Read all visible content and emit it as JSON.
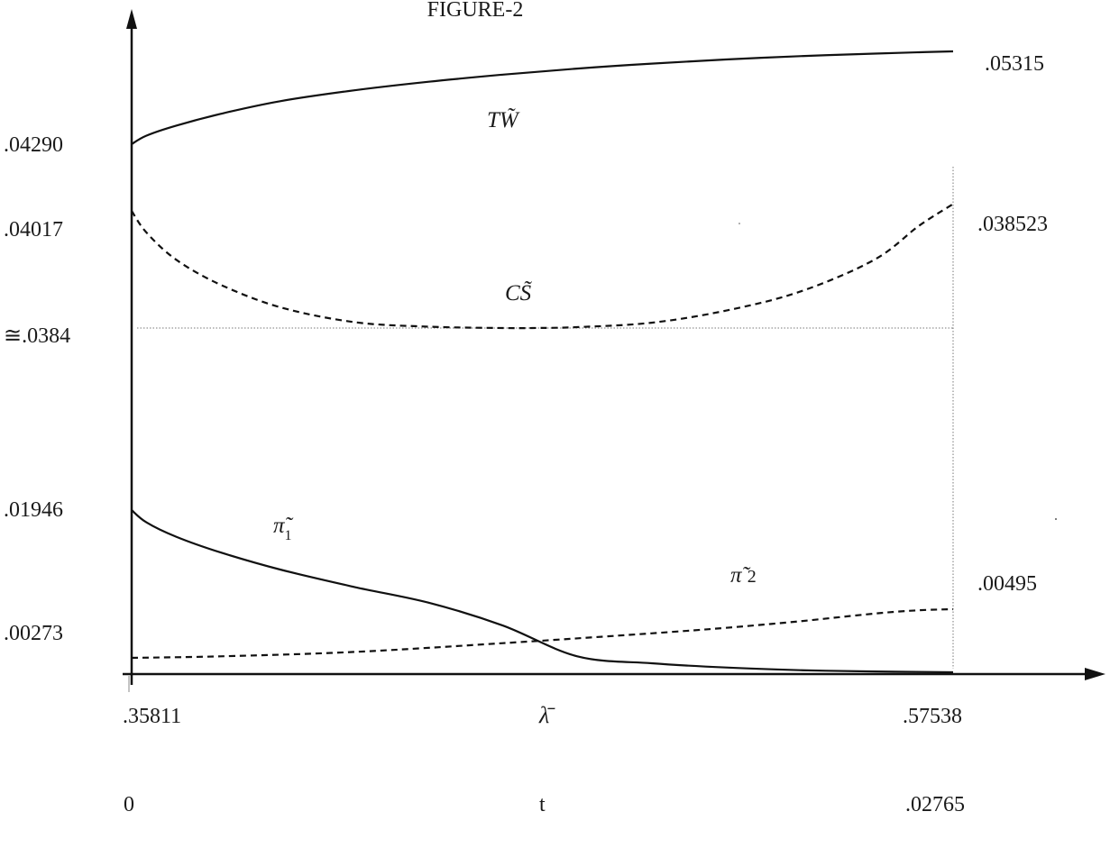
{
  "chart_data": {
    "type": "line",
    "title": "FIGURE-2",
    "x": {
      "label_lambda": "λ̄",
      "label_t": "t",
      "lambda_ticks": [
        ".35811",
        ".57538"
      ],
      "t_ticks": [
        "0",
        ".02765"
      ],
      "t_range": [
        0,
        0.02765
      ],
      "lambda_range": [
        0.35811,
        0.57538
      ]
    },
    "y_left_labels": [
      ".04290",
      ".04017",
      "≅.0384",
      ".01946",
      ".00273"
    ],
    "y_right_labels": [
      ".05315",
      ".038523",
      ".00495"
    ],
    "series": [
      {
        "name": "TW̃",
        "style": "solid",
        "x": [
          0,
          0.0005,
          0.0015,
          0.003,
          0.005,
          0.0075,
          0.01,
          0.0125,
          0.015,
          0.0175,
          0.02,
          0.0225,
          0.025,
          0.0265,
          0.02765
        ],
        "y": [
          0.0429,
          0.04385,
          0.04495,
          0.04625,
          0.04765,
          0.04885,
          0.0498,
          0.05058,
          0.05125,
          0.0518,
          0.05225,
          0.05262,
          0.0529,
          0.05305,
          0.05315
        ]
      },
      {
        "name": "CS̃",
        "style": "dashed",
        "x": [
          0,
          0.0005,
          0.0015,
          0.003,
          0.005,
          0.0075,
          0.01,
          0.0125,
          0.0135,
          0.015,
          0.0175,
          0.02,
          0.0225,
          0.025,
          0.0265,
          0.02765
        ],
        "y": [
          0.04017,
          0.03985,
          0.03945,
          0.03908,
          0.03875,
          0.03853,
          0.03843,
          0.0384,
          0.0384,
          0.03842,
          0.03852,
          0.0387,
          0.03898,
          0.03945,
          0.03995,
          0.04045
        ]
      },
      {
        "name": "π̃1",
        "style": "solid",
        "x": [
          0,
          0.0005,
          0.0015,
          0.003,
          0.005,
          0.0075,
          0.01,
          0.0125,
          0.015,
          0.0175,
          0.02,
          0.0225,
          0.025,
          0.02765
        ],
        "y": [
          0.01946,
          0.01765,
          0.01555,
          0.01325,
          0.01075,
          0.0082,
          0.0059,
          0.0042,
          0.0028,
          0.0017,
          0.0009,
          0.0004,
          0.00015,
          0.0
        ]
      },
      {
        "name": "π̃2",
        "style": "dashed",
        "x": [
          0,
          0.003,
          0.0075,
          0.0125,
          0.0175,
          0.02,
          0.0225,
          0.025,
          0.0265,
          0.02765
        ],
        "y": [
          0.00273,
          0.0028,
          0.003,
          0.0034,
          0.00385,
          0.0041,
          0.0044,
          0.00475,
          0.0049,
          0.00495
        ]
      }
    ],
    "reference_lines": [
      {
        "kind": "horizontal",
        "y": 0.0384,
        "style": "dotted"
      },
      {
        "kind": "vertical",
        "x": 0.02765,
        "style": "dotted"
      }
    ],
    "grid": false,
    "legend": "none"
  }
}
